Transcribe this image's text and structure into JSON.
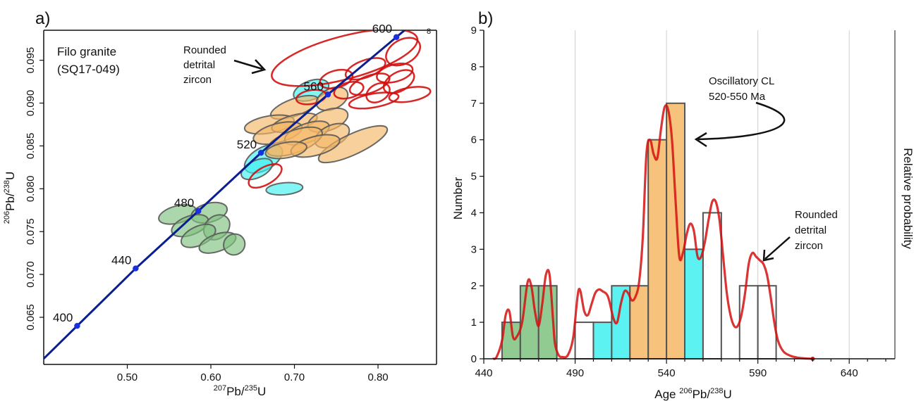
{
  "panels": {
    "a": {
      "panel_label": "a)",
      "sample": {
        "line1": "Filo granite",
        "line2": "(SQ17-049)"
      },
      "annotation": {
        "line1": "Rounded",
        "line2": "detrital",
        "line3": "zircon"
      },
      "xlabel": {
        "sup1": "207",
        "mid": "Pb/",
        "sup2": "235",
        "end": "U"
      },
      "ylabel": {
        "sup1": "206",
        "mid": "Pb/",
        "sup2": "238",
        "end": "U"
      },
      "corner_mark": "8"
    },
    "b": {
      "panel_label": "b)",
      "annotation_osc": {
        "line1": "Oscillatory CL",
        "line2": "520-550 Ma"
      },
      "annotation_det": {
        "line1": "Rounded",
        "line2": "detrital",
        "line3": "zircon"
      },
      "xlabel": {
        "pre": "Age ",
        "sup1": "206",
        "mid": "Pb/",
        "sup2": "238",
        "end": "U"
      },
      "ylabel": "Number",
      "ylabel_right": "Relative probability"
    }
  },
  "colors": {
    "concordia": "#0a1f8f",
    "age_marker": "#1a2fe0",
    "green": "#7fc27f",
    "cyan": "#3ff0f0",
    "orange": "#f5b765",
    "red": "#d41010",
    "ellipse_edge": "#5a5a5a"
  },
  "chart_data": [
    {
      "type": "scatter",
      "title": "",
      "xlabel": "207Pb/235U",
      "ylabel": "206Pb/238U",
      "xlim": [
        0.4,
        0.87
      ],
      "ylim": [
        0.0595,
        0.0985
      ],
      "xticks": [
        0.5,
        0.6,
        0.7,
        0.8
      ],
      "yticks": [
        0.065,
        0.07,
        0.075,
        0.08,
        0.085,
        0.09,
        0.095
      ],
      "concordia_ages_ma": [
        400,
        440,
        480,
        520,
        560,
        600
      ],
      "concordia_points": [
        {
          "age": 400,
          "x": 0.44,
          "y": 0.064
        },
        {
          "age": 440,
          "x": 0.51,
          "y": 0.0707
        },
        {
          "age": 480,
          "x": 0.585,
          "y": 0.0774
        },
        {
          "age": 520,
          "x": 0.66,
          "y": 0.0842
        },
        {
          "age": 560,
          "x": 0.74,
          "y": 0.091
        },
        {
          "age": 600,
          "x": 0.822,
          "y": 0.0977
        }
      ],
      "ellipse_groups": [
        {
          "name": "green",
          "ellipses": [
            {
              "x": 0.56,
              "y": 0.077,
              "rx": 0.023,
              "ry": 0.001,
              "rot": -15
            },
            {
              "x": 0.598,
              "y": 0.0772,
              "rx": 0.022,
              "ry": 0.0011,
              "rot": -15
            },
            {
              "x": 0.575,
              "y": 0.0757,
              "rx": 0.023,
              "ry": 0.0011,
              "rot": -20
            },
            {
              "x": 0.607,
              "y": 0.0755,
              "rx": 0.017,
              "ry": 0.0013,
              "rot": -40
            },
            {
              "x": 0.585,
              "y": 0.0745,
              "rx": 0.022,
              "ry": 0.0011,
              "rot": -25
            },
            {
              "x": 0.608,
              "y": 0.0737,
              "rx": 0.023,
              "ry": 0.001,
              "rot": -20
            },
            {
              "x": 0.628,
              "y": 0.0735,
              "rx": 0.013,
              "ry": 0.0012,
              "rot": -35
            }
          ]
        },
        {
          "name": "cyan",
          "ellipses": [
            {
              "x": 0.663,
              "y": 0.0835,
              "rx": 0.025,
              "ry": 0.0013,
              "rot": -30
            },
            {
              "x": 0.655,
              "y": 0.0823,
              "rx": 0.02,
              "ry": 0.001,
              "rot": -25
            },
            {
              "x": 0.688,
              "y": 0.08,
              "rx": 0.022,
              "ry": 0.0007,
              "rot": -5
            },
            {
              "x": 0.72,
              "y": 0.0915,
              "rx": 0.022,
              "ry": 0.0011,
              "rot": -20
            }
          ]
        },
        {
          "name": "orange",
          "ellipses": [
            {
              "x": 0.7,
              "y": 0.0895,
              "rx": 0.03,
              "ry": 0.001,
              "rot": -20
            },
            {
              "x": 0.745,
              "y": 0.0905,
              "rx": 0.02,
              "ry": 0.0012,
              "rot": -25
            },
            {
              "x": 0.67,
              "y": 0.0875,
              "rx": 0.03,
              "ry": 0.001,
              "rot": -10
            },
            {
              "x": 0.7,
              "y": 0.0877,
              "rx": 0.028,
              "ry": 0.0009,
              "rot": -15
            },
            {
              "x": 0.74,
              "y": 0.088,
              "rx": 0.025,
              "ry": 0.0012,
              "rot": -20
            },
            {
              "x": 0.68,
              "y": 0.0865,
              "rx": 0.03,
              "ry": 0.0011,
              "rot": -15
            },
            {
              "x": 0.715,
              "y": 0.0865,
              "rx": 0.028,
              "ry": 0.0011,
              "rot": -20
            },
            {
              "x": 0.745,
              "y": 0.0862,
              "rx": 0.022,
              "ry": 0.0012,
              "rot": -25
            },
            {
              "x": 0.7,
              "y": 0.0855,
              "rx": 0.035,
              "ry": 0.0013,
              "rot": -20
            },
            {
              "x": 0.77,
              "y": 0.0852,
              "rx": 0.045,
              "ry": 0.0012,
              "rot": -25
            },
            {
              "x": 0.725,
              "y": 0.085,
              "rx": 0.03,
              "ry": 0.0011,
              "rot": -15
            },
            {
              "x": 0.69,
              "y": 0.0845,
              "rx": 0.025,
              "ry": 0.0009,
              "rot": -10
            }
          ]
        },
        {
          "name": "red",
          "ellipses": [
            {
              "x": 0.76,
              "y": 0.0953,
              "rx": 0.09,
              "ry": 0.0025,
              "rot": -15
            },
            {
              "x": 0.83,
              "y": 0.096,
              "rx": 0.022,
              "ry": 0.0014,
              "rot": -30
            },
            {
              "x": 0.785,
              "y": 0.094,
              "rx": 0.025,
              "ry": 0.001,
              "rot": -20
            },
            {
              "x": 0.82,
              "y": 0.0935,
              "rx": 0.022,
              "ry": 0.001,
              "rot": -15
            },
            {
              "x": 0.75,
              "y": 0.0928,
              "rx": 0.02,
              "ry": 0.001,
              "rot": -15
            },
            {
              "x": 0.79,
              "y": 0.0922,
              "rx": 0.025,
              "ry": 0.001,
              "rot": -20
            },
            {
              "x": 0.825,
              "y": 0.0925,
              "rx": 0.02,
              "ry": 0.0011,
              "rot": -30
            },
            {
              "x": 0.765,
              "y": 0.0915,
              "rx": 0.018,
              "ry": 0.0009,
              "rot": -15
            },
            {
              "x": 0.8,
              "y": 0.0912,
              "rx": 0.015,
              "ry": 0.001,
              "rot": -30
            },
            {
              "x": 0.838,
              "y": 0.091,
              "rx": 0.025,
              "ry": 0.0008,
              "rot": -10
            },
            {
              "x": 0.795,
              "y": 0.0903,
              "rx": 0.03,
              "ry": 0.0008,
              "rot": -10
            },
            {
              "x": 0.72,
              "y": 0.0907,
              "rx": 0.018,
              "ry": 0.0008,
              "rot": -10
            },
            {
              "x": 0.665,
              "y": 0.0815,
              "rx": 0.022,
              "ry": 0.001,
              "rot": -30
            }
          ]
        }
      ]
    },
    {
      "type": "bar",
      "title": "",
      "xlabel": "Age 206Pb/238U",
      "ylabel": "Number",
      "ylabel_right": "Relative probability",
      "xlim": [
        440,
        665
      ],
      "ylim": [
        0,
        9
      ],
      "xticks": [
        440,
        490,
        540,
        590,
        640
      ],
      "yticks": [
        0,
        1,
        2,
        3,
        4,
        5,
        6,
        7,
        8,
        9
      ],
      "bin_width": 10,
      "bars": [
        {
          "start": 450,
          "count": 1,
          "group": "green"
        },
        {
          "start": 460,
          "count": 2,
          "group": "green"
        },
        {
          "start": 470,
          "count": 2,
          "group": "green"
        },
        {
          "start": 490,
          "count": 1,
          "group": "none"
        },
        {
          "start": 500,
          "count": 1,
          "group": "cyan"
        },
        {
          "start": 510,
          "count": 2,
          "group": "cyan"
        },
        {
          "start": 520,
          "count": 2,
          "group": "orange"
        },
        {
          "start": 530,
          "count": 6,
          "group": "orange"
        },
        {
          "start": 540,
          "count": 7,
          "group": "orange"
        },
        {
          "start": 550,
          "count": 3,
          "group": "cyan"
        },
        {
          "start": 560,
          "count": 4,
          "group": "none"
        },
        {
          "start": 580,
          "count": 2,
          "group": "none"
        },
        {
          "start": 590,
          "count": 2,
          "group": "none"
        }
      ],
      "probability_curve": {
        "x": [
          445,
          447,
          450,
          452,
          454,
          456,
          458,
          461,
          464,
          466,
          468,
          470,
          472,
          474,
          476,
          478,
          479,
          481,
          483,
          486,
          489,
          492,
          495,
          497,
          499,
          501,
          503,
          505,
          508,
          511,
          513,
          515,
          517,
          519,
          521,
          523,
          525,
          527,
          529,
          531,
          533,
          535,
          537,
          539,
          541,
          543,
          545,
          547,
          549,
          551,
          553,
          555,
          557,
          559,
          561,
          563,
          565,
          567,
          569,
          571,
          573,
          575,
          577,
          579,
          581,
          583,
          585,
          587,
          589,
          591,
          593,
          595,
          597,
          599,
          601,
          604,
          608,
          612,
          616,
          620
        ],
        "y": [
          0.0,
          0.05,
          0.5,
          1.2,
          1.3,
          0.6,
          0.6,
          1.0,
          2.1,
          2.0,
          1.3,
          0.9,
          1.5,
          2.3,
          2.3,
          1.0,
          0.4,
          0.1,
          0.05,
          0.1,
          0.6,
          1.9,
          1.3,
          1.2,
          1.5,
          1.8,
          1.9,
          1.85,
          1.7,
          1.1,
          1.0,
          1.5,
          1.85,
          1.8,
          1.6,
          1.7,
          2.1,
          3.3,
          5.6,
          6.0,
          5.6,
          5.5,
          6.3,
          6.9,
          6.8,
          6.0,
          4.3,
          2.8,
          2.9,
          3.4,
          3.7,
          3.5,
          2.8,
          2.8,
          3.2,
          3.8,
          4.3,
          4.3,
          3.8,
          2.8,
          1.8,
          1.2,
          0.9,
          0.9,
          1.2,
          1.8,
          2.6,
          2.9,
          2.8,
          2.7,
          2.6,
          2.3,
          1.7,
          1.0,
          0.5,
          0.2,
          0.08,
          0.03,
          0.01,
          0.0
        ]
      }
    }
  ]
}
